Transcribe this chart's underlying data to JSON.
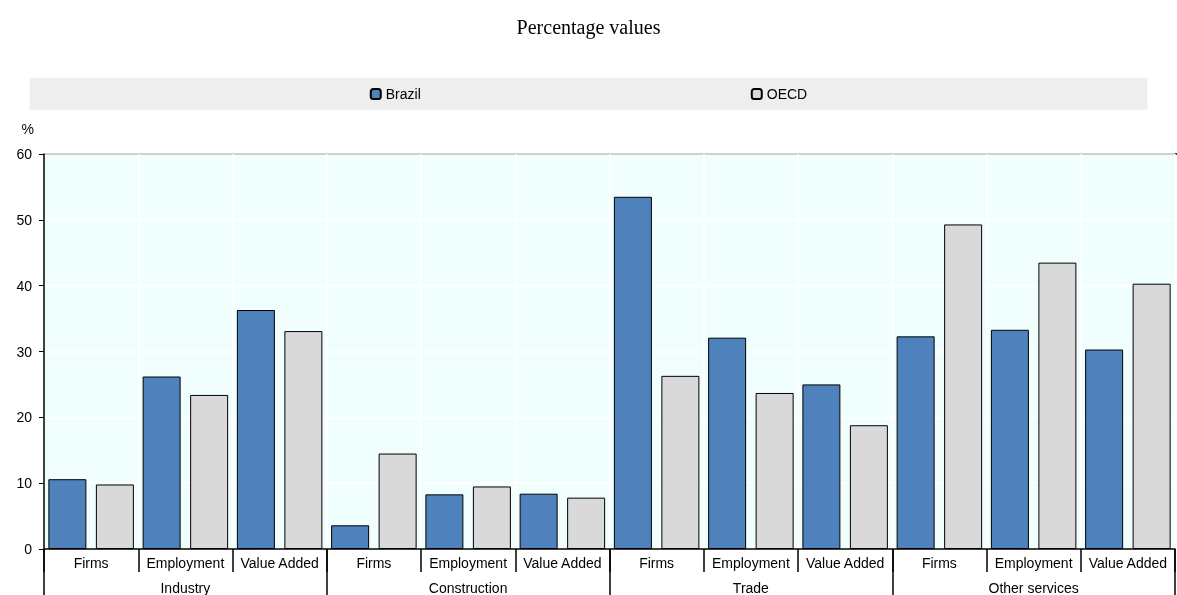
{
  "chart_data": {
    "type": "bar",
    "title": "Percentage values",
    "ylabel": "%",
    "categories": [
      "Firms",
      "Employment",
      "Value Added",
      "Firms",
      "Employment",
      "Value Added",
      "Firms",
      "Employment",
      "Value Added",
      "Firms",
      "Employment",
      "Value Added"
    ],
    "annotations": [
      "Industry",
      "Construction",
      "Trade",
      "Other services"
    ],
    "series": [
      {
        "name": "Brazil",
        "color": "#4f81bd",
        "values": [
          10.6,
          26.2,
          36.3,
          3.6,
          8.3,
          8.4,
          53.5,
          32.1,
          25.0,
          32.3,
          33.3,
          30.3
        ]
      },
      {
        "name": "OECD",
        "color": "#d9d9d9",
        "values": [
          9.8,
          23.4,
          33.1,
          14.5,
          9.5,
          7.8,
          26.3,
          23.7,
          18.8,
          49.3,
          43.5,
          40.3
        ]
      }
    ],
    "ylim": [
      0,
      60
    ],
    "yticks": [
      0,
      10,
      20,
      30,
      40,
      50,
      60
    ],
    "grid": true,
    "legend": "top"
  }
}
